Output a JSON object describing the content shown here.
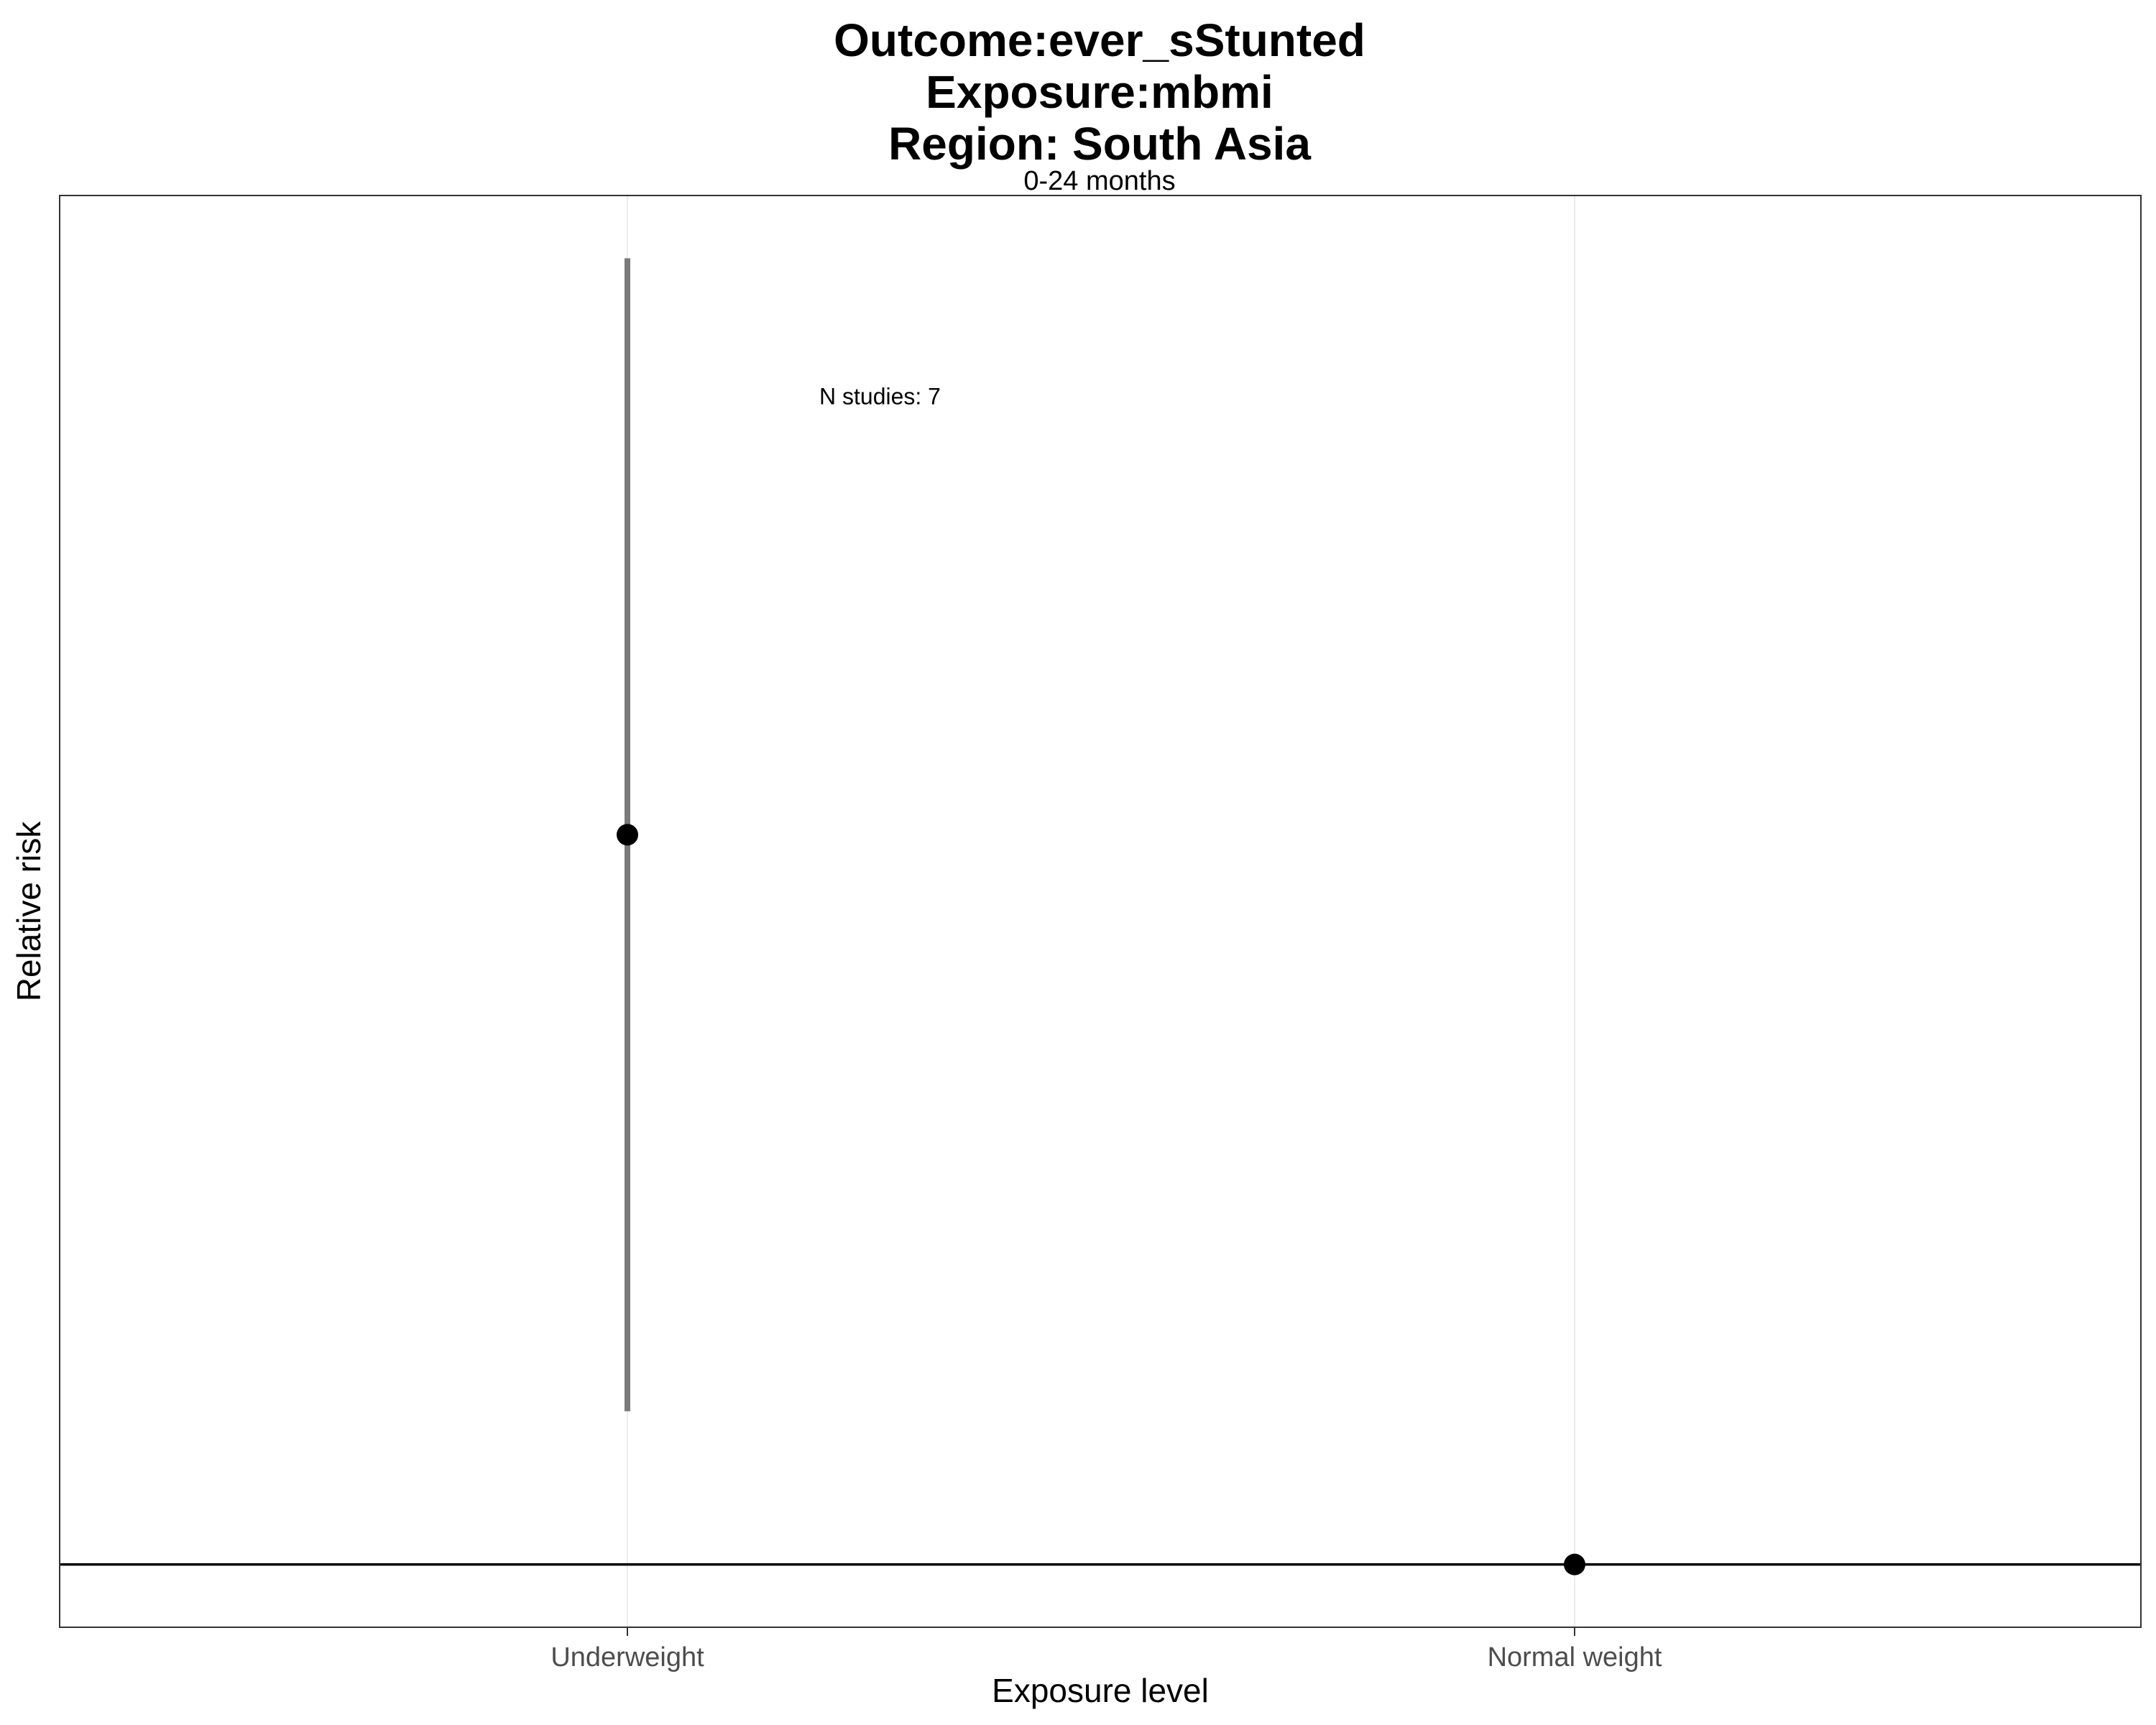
{
  "chart_data": {
    "type": "scatter",
    "title_lines": [
      "Outcome:ever_sStunted",
      "Exposure:mbmi",
      "Region: South Asia"
    ],
    "subtitle": "0-24 months",
    "xlabel": "Exposure level",
    "ylabel": "Relative risk",
    "categories": [
      "Underweight",
      "Normal weight"
    ],
    "points": [
      {
        "category": "Underweight",
        "estimate": 1.5,
        "ci_lower": 1.105,
        "ci_upper": 1.895
      },
      {
        "category": "Normal weight",
        "estimate": 1.0,
        "ci_lower": null,
        "ci_upper": null
      }
    ],
    "reference_line": 1.0,
    "ylim": [
      0.957,
      1.938
    ],
    "y_ticks_shown": false,
    "grid": {
      "major_x": true,
      "major_y": false
    },
    "annotations": [
      {
        "text": "N studies: 7",
        "category": "Underweight",
        "y": 1.795
      }
    ],
    "legend": "none",
    "colors": {
      "point": "#000000",
      "errorbar": "#7a7a7a",
      "reference_line": "#000000",
      "grid": "#ebebeb",
      "panel_border": "#333333"
    }
  }
}
